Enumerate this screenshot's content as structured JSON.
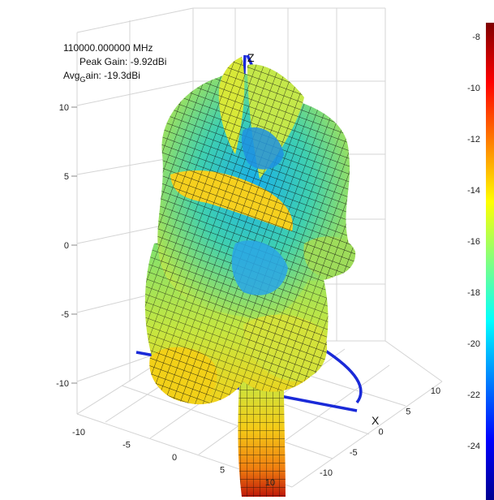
{
  "chart_data": {
    "type": "surface3d",
    "annotation": {
      "frequency": "110000.000000 MHz",
      "peak_gain": "Peak Gain: -9.92dBi",
      "avg_gain_prefix": "Avg",
      "avg_gain_sub": "G",
      "avg_gain_suffix": "ain: -19.3dBi"
    },
    "z_ticks": [
      "10",
      "5",
      "0",
      "-5",
      "-10"
    ],
    "y_ticks": [
      "-10",
      "-5",
      "0",
      "5",
      "10"
    ],
    "x_ticks": [
      "10",
      "5",
      "0",
      "-5",
      "-10"
    ],
    "x_axis_name": "X",
    "z_axis_name": "Z",
    "colorbar": {
      "ticks": [
        "-8",
        "-10",
        "-12",
        "-14",
        "-16",
        "-18",
        "-20",
        "-22",
        "-24"
      ],
      "range": [
        -25,
        -7.5
      ],
      "colors": [
        "#7f0000",
        "#ff0000",
        "#ff8000",
        "#ffff00",
        "#80ff80",
        "#00ffff",
        "#0080ff",
        "#0000ff",
        "#00008f"
      ]
    },
    "grid": true
  }
}
